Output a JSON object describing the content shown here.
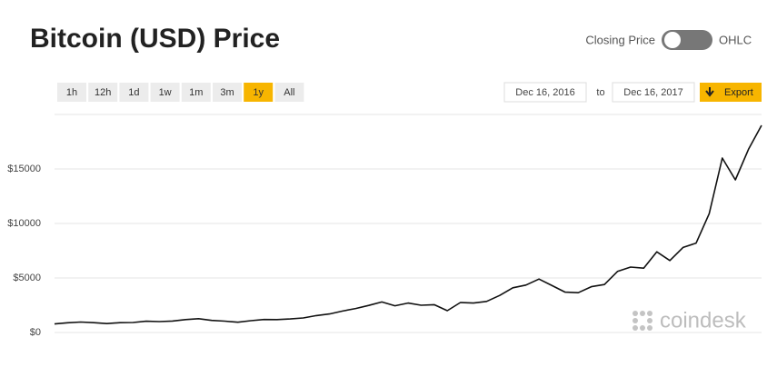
{
  "header": {
    "title": "Bitcoin (USD) Price",
    "toggle_left": "Closing Price",
    "toggle_right": "OHLC"
  },
  "range_buttons": [
    "1h",
    "12h",
    "1d",
    "1w",
    "1m",
    "3m",
    "1y",
    "All"
  ],
  "selected_range": "1y",
  "date_range": {
    "from": "Dec 16, 2016",
    "separator": "to",
    "to": "Dec 16, 2017"
  },
  "export": "Export",
  "watermark": "coindesk",
  "chart_data": {
    "type": "line",
    "color": "#111111",
    "values": [
      780,
      890,
      960,
      900,
      820,
      900,
      920,
      1030,
      1000,
      1050,
      1180,
      1270,
      1110,
      1040,
      940,
      1080,
      1190,
      1180,
      1240,
      1330,
      1550,
      1700,
      1970,
      2200,
      2480,
      2800,
      2450,
      2700,
      2500,
      2550,
      2000,
      2750,
      2700,
      2850,
      3400,
      4100,
      4350,
      4900,
      4300,
      3700,
      3650,
      4200,
      4400,
      5600,
      6000,
      5900,
      7400,
      6600,
      7800,
      8200,
      10900,
      16000,
      14000,
      16800,
      19000
    ],
    "ylim": [
      0,
      20000
    ],
    "yticks": [
      {
        "value": 0,
        "label": "$0"
      },
      {
        "value": 5000,
        "label": "$5000"
      },
      {
        "value": 10000,
        "label": "$10000"
      },
      {
        "value": 15000,
        "label": "$15000"
      }
    ],
    "grid": true
  }
}
